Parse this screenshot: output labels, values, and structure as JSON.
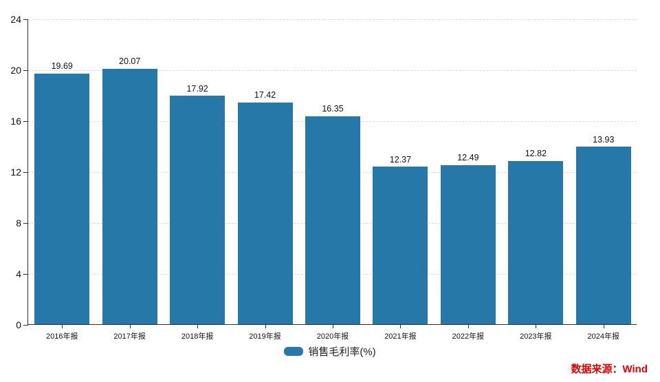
{
  "chart_data": {
    "type": "bar",
    "categories": [
      "2016年报",
      "2017年报",
      "2018年报",
      "2019年报",
      "2020年报",
      "2021年报",
      "2022年报",
      "2023年报",
      "2024年报"
    ],
    "values": [
      19.69,
      20.07,
      17.92,
      17.42,
      16.35,
      12.37,
      12.49,
      12.82,
      13.93
    ],
    "series_name": "销售毛利率(%)",
    "title": "",
    "xlabel": "",
    "ylabel": "",
    "ylim": [
      0,
      24
    ],
    "yticks": [
      0,
      4,
      8,
      12,
      16,
      20,
      24
    ],
    "grid": "horizontal-dashed",
    "legend_position": "bottom-center",
    "bar_color": "#2578a7"
  },
  "legend": {
    "label": "销售毛利率(%)",
    "swatch_color": "#2578a7"
  },
  "source": {
    "label": "数据来源：Wind",
    "color": "#e60000"
  }
}
